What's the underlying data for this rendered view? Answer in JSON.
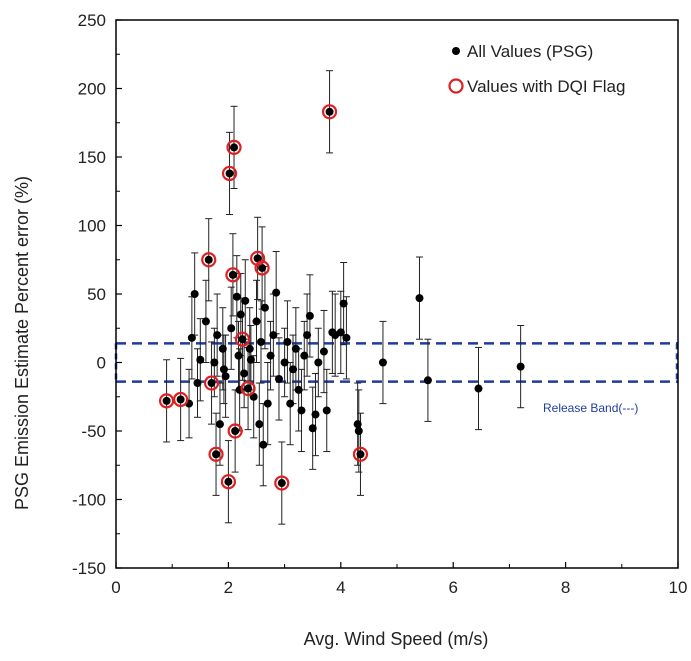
{
  "chart_data": {
    "type": "scatter",
    "title": "",
    "xlabel": "Avg. Wind Speed (m/s)",
    "ylabel": "PSG Emission Estimate  Percent error (%)",
    "xlim": [
      0,
      10
    ],
    "ylim": [
      -150,
      250
    ],
    "xticks": [
      0,
      2,
      4,
      6,
      8,
      10
    ],
    "yticks": [
      -150,
      -100,
      -50,
      0,
      50,
      100,
      150,
      200,
      250
    ],
    "grid": false,
    "legend_position": "top-right",
    "band": {
      "lower": -14,
      "upper": 14,
      "label": "Release Band(---)",
      "color": "#1f3da0"
    },
    "colors": {
      "points": "#000000",
      "flag": "#e02020",
      "band": "#1f3da0"
    },
    "series": [
      {
        "name": "All Values (PSG)",
        "marker": "filled-circle",
        "points": [
          {
            "x": 0.9,
            "y": -28,
            "err": 30
          },
          {
            "x": 1.15,
            "y": -27,
            "err": 30
          },
          {
            "x": 1.3,
            "y": -30,
            "err": 25
          },
          {
            "x": 1.35,
            "y": 18,
            "err": 30
          },
          {
            "x": 1.4,
            "y": 50,
            "err": 30
          },
          {
            "x": 1.45,
            "y": -15,
            "err": 25
          },
          {
            "x": 1.5,
            "y": 2,
            "err": 30
          },
          {
            "x": 1.6,
            "y": 30,
            "err": 30
          },
          {
            "x": 1.65,
            "y": 75,
            "err": 30
          },
          {
            "x": 1.7,
            "y": -15,
            "err": 30
          },
          {
            "x": 1.75,
            "y": 0,
            "err": 25
          },
          {
            "x": 1.78,
            "y": -67,
            "err": 30
          },
          {
            "x": 1.8,
            "y": 20,
            "err": 30
          },
          {
            "x": 1.85,
            "y": -45,
            "err": 30
          },
          {
            "x": 1.9,
            "y": 10,
            "err": 30
          },
          {
            "x": 1.92,
            "y": -5,
            "err": 25
          },
          {
            "x": 1.95,
            "y": -10,
            "err": 30
          },
          {
            "x": 2.0,
            "y": -87,
            "err": 30
          },
          {
            "x": 2.02,
            "y": 138,
            "err": 30
          },
          {
            "x": 2.05,
            "y": 25,
            "err": 30
          },
          {
            "x": 2.08,
            "y": 64,
            "err": 30
          },
          {
            "x": 2.1,
            "y": 157,
            "err": 30
          },
          {
            "x": 2.12,
            "y": -50,
            "err": 30
          },
          {
            "x": 2.15,
            "y": 48,
            "err": 30
          },
          {
            "x": 2.18,
            "y": 5,
            "err": 25
          },
          {
            "x": 2.2,
            "y": -20,
            "err": 30
          },
          {
            "x": 2.22,
            "y": 35,
            "err": 30
          },
          {
            "x": 2.25,
            "y": 17,
            "err": 30
          },
          {
            "x": 2.28,
            "y": -8,
            "err": 25
          },
          {
            "x": 2.3,
            "y": 45,
            "err": 30
          },
          {
            "x": 2.35,
            "y": -19,
            "err": 30
          },
          {
            "x": 2.38,
            "y": 10,
            "err": 30
          },
          {
            "x": 2.4,
            "y": 2,
            "err": 25
          },
          {
            "x": 2.45,
            "y": -25,
            "err": 30
          },
          {
            "x": 2.5,
            "y": 30,
            "err": 30
          },
          {
            "x": 2.52,
            "y": 76,
            "err": 30
          },
          {
            "x": 2.55,
            "y": -45,
            "err": 30
          },
          {
            "x": 2.58,
            "y": 15,
            "err": 30
          },
          {
            "x": 2.6,
            "y": 69,
            "err": 30
          },
          {
            "x": 2.62,
            "y": -60,
            "err": 30
          },
          {
            "x": 2.65,
            "y": 40,
            "err": 30
          },
          {
            "x": 2.7,
            "y": -30,
            "err": 30
          },
          {
            "x": 2.75,
            "y": 5,
            "err": 25
          },
          {
            "x": 2.8,
            "y": 20,
            "err": 30
          },
          {
            "x": 2.85,
            "y": 51,
            "err": 30
          },
          {
            "x": 2.9,
            "y": -12,
            "err": 30
          },
          {
            "x": 2.95,
            "y": -88,
            "err": 30
          },
          {
            "x": 3.0,
            "y": 0,
            "err": 25
          },
          {
            "x": 3.05,
            "y": 15,
            "err": 30
          },
          {
            "x": 3.1,
            "y": -30,
            "err": 30
          },
          {
            "x": 3.15,
            "y": -5,
            "err": 25
          },
          {
            "x": 3.2,
            "y": 10,
            "err": 30
          },
          {
            "x": 3.25,
            "y": -20,
            "err": 30
          },
          {
            "x": 3.3,
            "y": -35,
            "err": 30
          },
          {
            "x": 3.35,
            "y": 5,
            "err": 25
          },
          {
            "x": 3.4,
            "y": 20,
            "err": 30
          },
          {
            "x": 3.45,
            "y": 34,
            "err": 30
          },
          {
            "x": 3.5,
            "y": -48,
            "err": 30
          },
          {
            "x": 3.55,
            "y": -38,
            "err": 30
          },
          {
            "x": 3.6,
            "y": 0,
            "err": 25
          },
          {
            "x": 3.7,
            "y": 8,
            "err": 30
          },
          {
            "x": 3.75,
            "y": -35,
            "err": 30
          },
          {
            "x": 3.8,
            "y": 183,
            "err": 30
          },
          {
            "x": 3.85,
            "y": 22,
            "err": 30
          },
          {
            "x": 3.9,
            "y": 20,
            "err": 30
          },
          {
            "x": 4.0,
            "y": 22,
            "err": 30
          },
          {
            "x": 4.05,
            "y": 43,
            "err": 30
          },
          {
            "x": 4.1,
            "y": 18,
            "err": 30
          },
          {
            "x": 4.3,
            "y": -45,
            "err": 30
          },
          {
            "x": 4.32,
            "y": -50,
            "err": 30
          },
          {
            "x": 4.35,
            "y": -67,
            "err": 30
          },
          {
            "x": 4.75,
            "y": 0,
            "err": 30
          },
          {
            "x": 5.4,
            "y": 47,
            "err": 30
          },
          {
            "x": 5.55,
            "y": -13,
            "err": 30
          },
          {
            "x": 6.45,
            "y": -19,
            "err": 30
          },
          {
            "x": 7.2,
            "y": -3,
            "err": 30
          }
        ]
      },
      {
        "name": "Values with DQI Flag",
        "marker": "open-circle",
        "points": [
          {
            "x": 0.9,
            "y": -28
          },
          {
            "x": 1.15,
            "y": -27
          },
          {
            "x": 1.65,
            "y": 75
          },
          {
            "x": 1.7,
            "y": -15
          },
          {
            "x": 1.78,
            "y": -67
          },
          {
            "x": 2.0,
            "y": -87
          },
          {
            "x": 2.02,
            "y": 138
          },
          {
            "x": 2.08,
            "y": 64
          },
          {
            "x": 2.1,
            "y": 157
          },
          {
            "x": 2.12,
            "y": -50
          },
          {
            "x": 2.25,
            "y": 17
          },
          {
            "x": 2.35,
            "y": -19
          },
          {
            "x": 2.52,
            "y": 76
          },
          {
            "x": 2.6,
            "y": 69
          },
          {
            "x": 2.95,
            "y": -88
          },
          {
            "x": 3.8,
            "y": 183
          },
          {
            "x": 4.35,
            "y": -67
          }
        ]
      }
    ]
  }
}
